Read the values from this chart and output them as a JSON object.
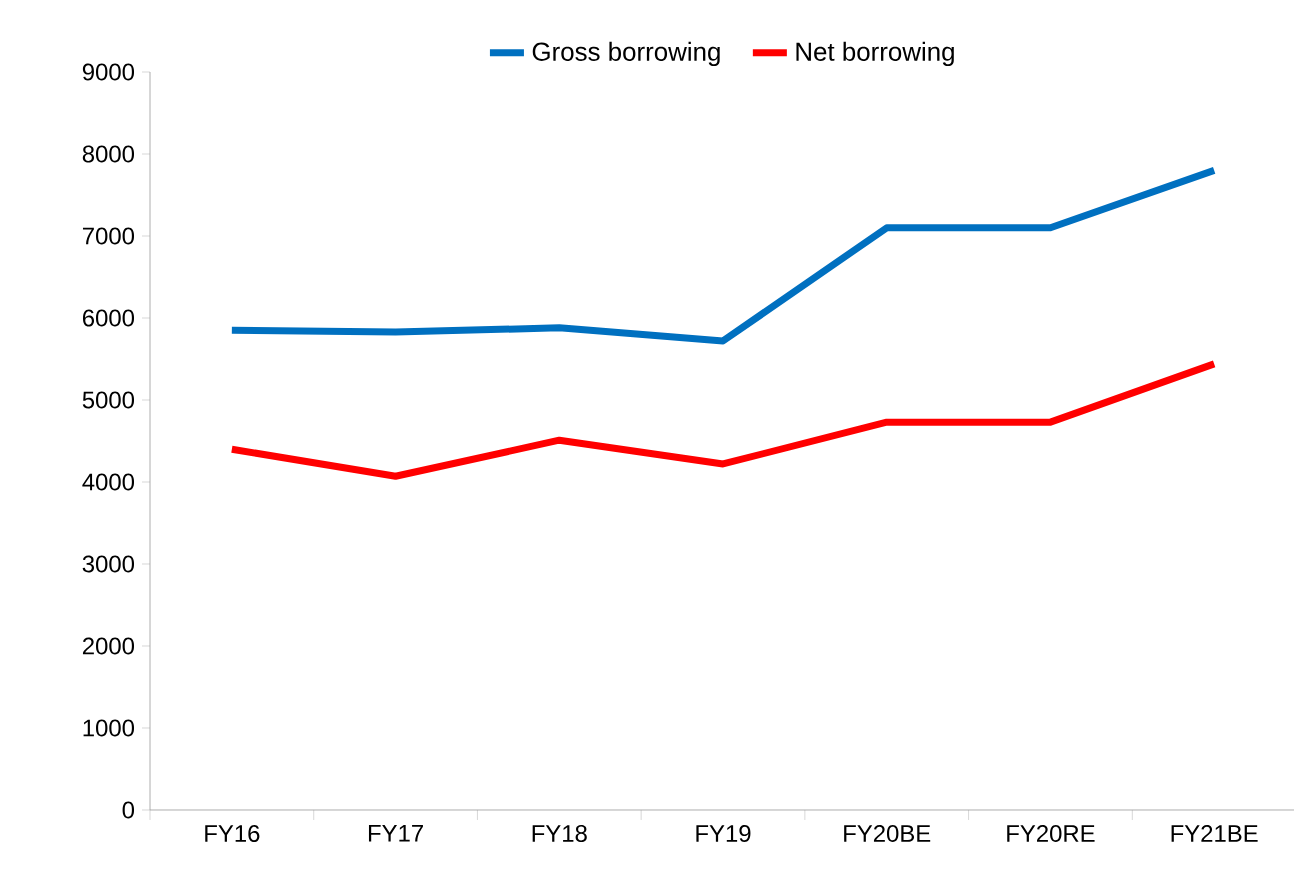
{
  "chart_data": {
    "type": "line",
    "categories": [
      "FY16",
      "FY17",
      "FY18",
      "FY19",
      "FY20BE",
      "FY20RE",
      "FY21BE"
    ],
    "series": [
      {
        "name": "Gross borrowing",
        "color": "#0070c0",
        "values": [
          5850,
          5830,
          5880,
          5720,
          7100,
          7100,
          7800
        ]
      },
      {
        "name": "Net borrowing",
        "color": "#ff0000",
        "values": [
          4400,
          4070,
          4510,
          4220,
          4730,
          4730,
          5440
        ]
      }
    ],
    "ylim": [
      0,
      9000
    ],
    "yticks": [
      0,
      1000,
      2000,
      3000,
      4000,
      5000,
      6000,
      7000,
      8000,
      9000
    ],
    "grid": false,
    "legend": "top",
    "marker": "none",
    "line_style": "solid"
  }
}
